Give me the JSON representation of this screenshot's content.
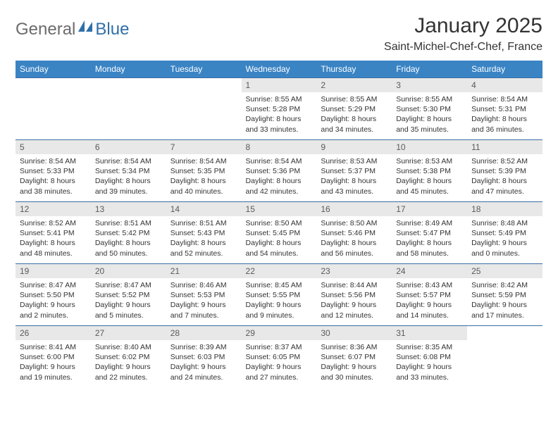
{
  "logo": {
    "part1": "General",
    "part2": "Blue"
  },
  "title": "January 2025",
  "location": "Saint-Michel-Chef-Chef, France",
  "headers": [
    "Sunday",
    "Monday",
    "Tuesday",
    "Wednesday",
    "Thursday",
    "Friday",
    "Saturday"
  ],
  "colors": {
    "header_bg": "#3a84c4",
    "header_fg": "#ffffff",
    "daynum_bg": "#e8e8e8",
    "border": "#3a6ea5",
    "logo_gray": "#6b6b6b",
    "logo_blue": "#2f6fa8"
  },
  "weeks": [
    [
      null,
      null,
      null,
      {
        "n": "1",
        "sr": "Sunrise: 8:55 AM",
        "ss": "Sunset: 5:28 PM",
        "d1": "Daylight: 8 hours",
        "d2": "and 33 minutes."
      },
      {
        "n": "2",
        "sr": "Sunrise: 8:55 AM",
        "ss": "Sunset: 5:29 PM",
        "d1": "Daylight: 8 hours",
        "d2": "and 34 minutes."
      },
      {
        "n": "3",
        "sr": "Sunrise: 8:55 AM",
        "ss": "Sunset: 5:30 PM",
        "d1": "Daylight: 8 hours",
        "d2": "and 35 minutes."
      },
      {
        "n": "4",
        "sr": "Sunrise: 8:54 AM",
        "ss": "Sunset: 5:31 PM",
        "d1": "Daylight: 8 hours",
        "d2": "and 36 minutes."
      }
    ],
    [
      {
        "n": "5",
        "sr": "Sunrise: 8:54 AM",
        "ss": "Sunset: 5:33 PM",
        "d1": "Daylight: 8 hours",
        "d2": "and 38 minutes."
      },
      {
        "n": "6",
        "sr": "Sunrise: 8:54 AM",
        "ss": "Sunset: 5:34 PM",
        "d1": "Daylight: 8 hours",
        "d2": "and 39 minutes."
      },
      {
        "n": "7",
        "sr": "Sunrise: 8:54 AM",
        "ss": "Sunset: 5:35 PM",
        "d1": "Daylight: 8 hours",
        "d2": "and 40 minutes."
      },
      {
        "n": "8",
        "sr": "Sunrise: 8:54 AM",
        "ss": "Sunset: 5:36 PM",
        "d1": "Daylight: 8 hours",
        "d2": "and 42 minutes."
      },
      {
        "n": "9",
        "sr": "Sunrise: 8:53 AM",
        "ss": "Sunset: 5:37 PM",
        "d1": "Daylight: 8 hours",
        "d2": "and 43 minutes."
      },
      {
        "n": "10",
        "sr": "Sunrise: 8:53 AM",
        "ss": "Sunset: 5:38 PM",
        "d1": "Daylight: 8 hours",
        "d2": "and 45 minutes."
      },
      {
        "n": "11",
        "sr": "Sunrise: 8:52 AM",
        "ss": "Sunset: 5:39 PM",
        "d1": "Daylight: 8 hours",
        "d2": "and 47 minutes."
      }
    ],
    [
      {
        "n": "12",
        "sr": "Sunrise: 8:52 AM",
        "ss": "Sunset: 5:41 PM",
        "d1": "Daylight: 8 hours",
        "d2": "and 48 minutes."
      },
      {
        "n": "13",
        "sr": "Sunrise: 8:51 AM",
        "ss": "Sunset: 5:42 PM",
        "d1": "Daylight: 8 hours",
        "d2": "and 50 minutes."
      },
      {
        "n": "14",
        "sr": "Sunrise: 8:51 AM",
        "ss": "Sunset: 5:43 PM",
        "d1": "Daylight: 8 hours",
        "d2": "and 52 minutes."
      },
      {
        "n": "15",
        "sr": "Sunrise: 8:50 AM",
        "ss": "Sunset: 5:45 PM",
        "d1": "Daylight: 8 hours",
        "d2": "and 54 minutes."
      },
      {
        "n": "16",
        "sr": "Sunrise: 8:50 AM",
        "ss": "Sunset: 5:46 PM",
        "d1": "Daylight: 8 hours",
        "d2": "and 56 minutes."
      },
      {
        "n": "17",
        "sr": "Sunrise: 8:49 AM",
        "ss": "Sunset: 5:47 PM",
        "d1": "Daylight: 8 hours",
        "d2": "and 58 minutes."
      },
      {
        "n": "18",
        "sr": "Sunrise: 8:48 AM",
        "ss": "Sunset: 5:49 PM",
        "d1": "Daylight: 9 hours",
        "d2": "and 0 minutes."
      }
    ],
    [
      {
        "n": "19",
        "sr": "Sunrise: 8:47 AM",
        "ss": "Sunset: 5:50 PM",
        "d1": "Daylight: 9 hours",
        "d2": "and 2 minutes."
      },
      {
        "n": "20",
        "sr": "Sunrise: 8:47 AM",
        "ss": "Sunset: 5:52 PM",
        "d1": "Daylight: 9 hours",
        "d2": "and 5 minutes."
      },
      {
        "n": "21",
        "sr": "Sunrise: 8:46 AM",
        "ss": "Sunset: 5:53 PM",
        "d1": "Daylight: 9 hours",
        "d2": "and 7 minutes."
      },
      {
        "n": "22",
        "sr": "Sunrise: 8:45 AM",
        "ss": "Sunset: 5:55 PM",
        "d1": "Daylight: 9 hours",
        "d2": "and 9 minutes."
      },
      {
        "n": "23",
        "sr": "Sunrise: 8:44 AM",
        "ss": "Sunset: 5:56 PM",
        "d1": "Daylight: 9 hours",
        "d2": "and 12 minutes."
      },
      {
        "n": "24",
        "sr": "Sunrise: 8:43 AM",
        "ss": "Sunset: 5:57 PM",
        "d1": "Daylight: 9 hours",
        "d2": "and 14 minutes."
      },
      {
        "n": "25",
        "sr": "Sunrise: 8:42 AM",
        "ss": "Sunset: 5:59 PM",
        "d1": "Daylight: 9 hours",
        "d2": "and 17 minutes."
      }
    ],
    [
      {
        "n": "26",
        "sr": "Sunrise: 8:41 AM",
        "ss": "Sunset: 6:00 PM",
        "d1": "Daylight: 9 hours",
        "d2": "and 19 minutes."
      },
      {
        "n": "27",
        "sr": "Sunrise: 8:40 AM",
        "ss": "Sunset: 6:02 PM",
        "d1": "Daylight: 9 hours",
        "d2": "and 22 minutes."
      },
      {
        "n": "28",
        "sr": "Sunrise: 8:39 AM",
        "ss": "Sunset: 6:03 PM",
        "d1": "Daylight: 9 hours",
        "d2": "and 24 minutes."
      },
      {
        "n": "29",
        "sr": "Sunrise: 8:37 AM",
        "ss": "Sunset: 6:05 PM",
        "d1": "Daylight: 9 hours",
        "d2": "and 27 minutes."
      },
      {
        "n": "30",
        "sr": "Sunrise: 8:36 AM",
        "ss": "Sunset: 6:07 PM",
        "d1": "Daylight: 9 hours",
        "d2": "and 30 minutes."
      },
      {
        "n": "31",
        "sr": "Sunrise: 8:35 AM",
        "ss": "Sunset: 6:08 PM",
        "d1": "Daylight: 9 hours",
        "d2": "and 33 minutes."
      },
      null
    ]
  ]
}
